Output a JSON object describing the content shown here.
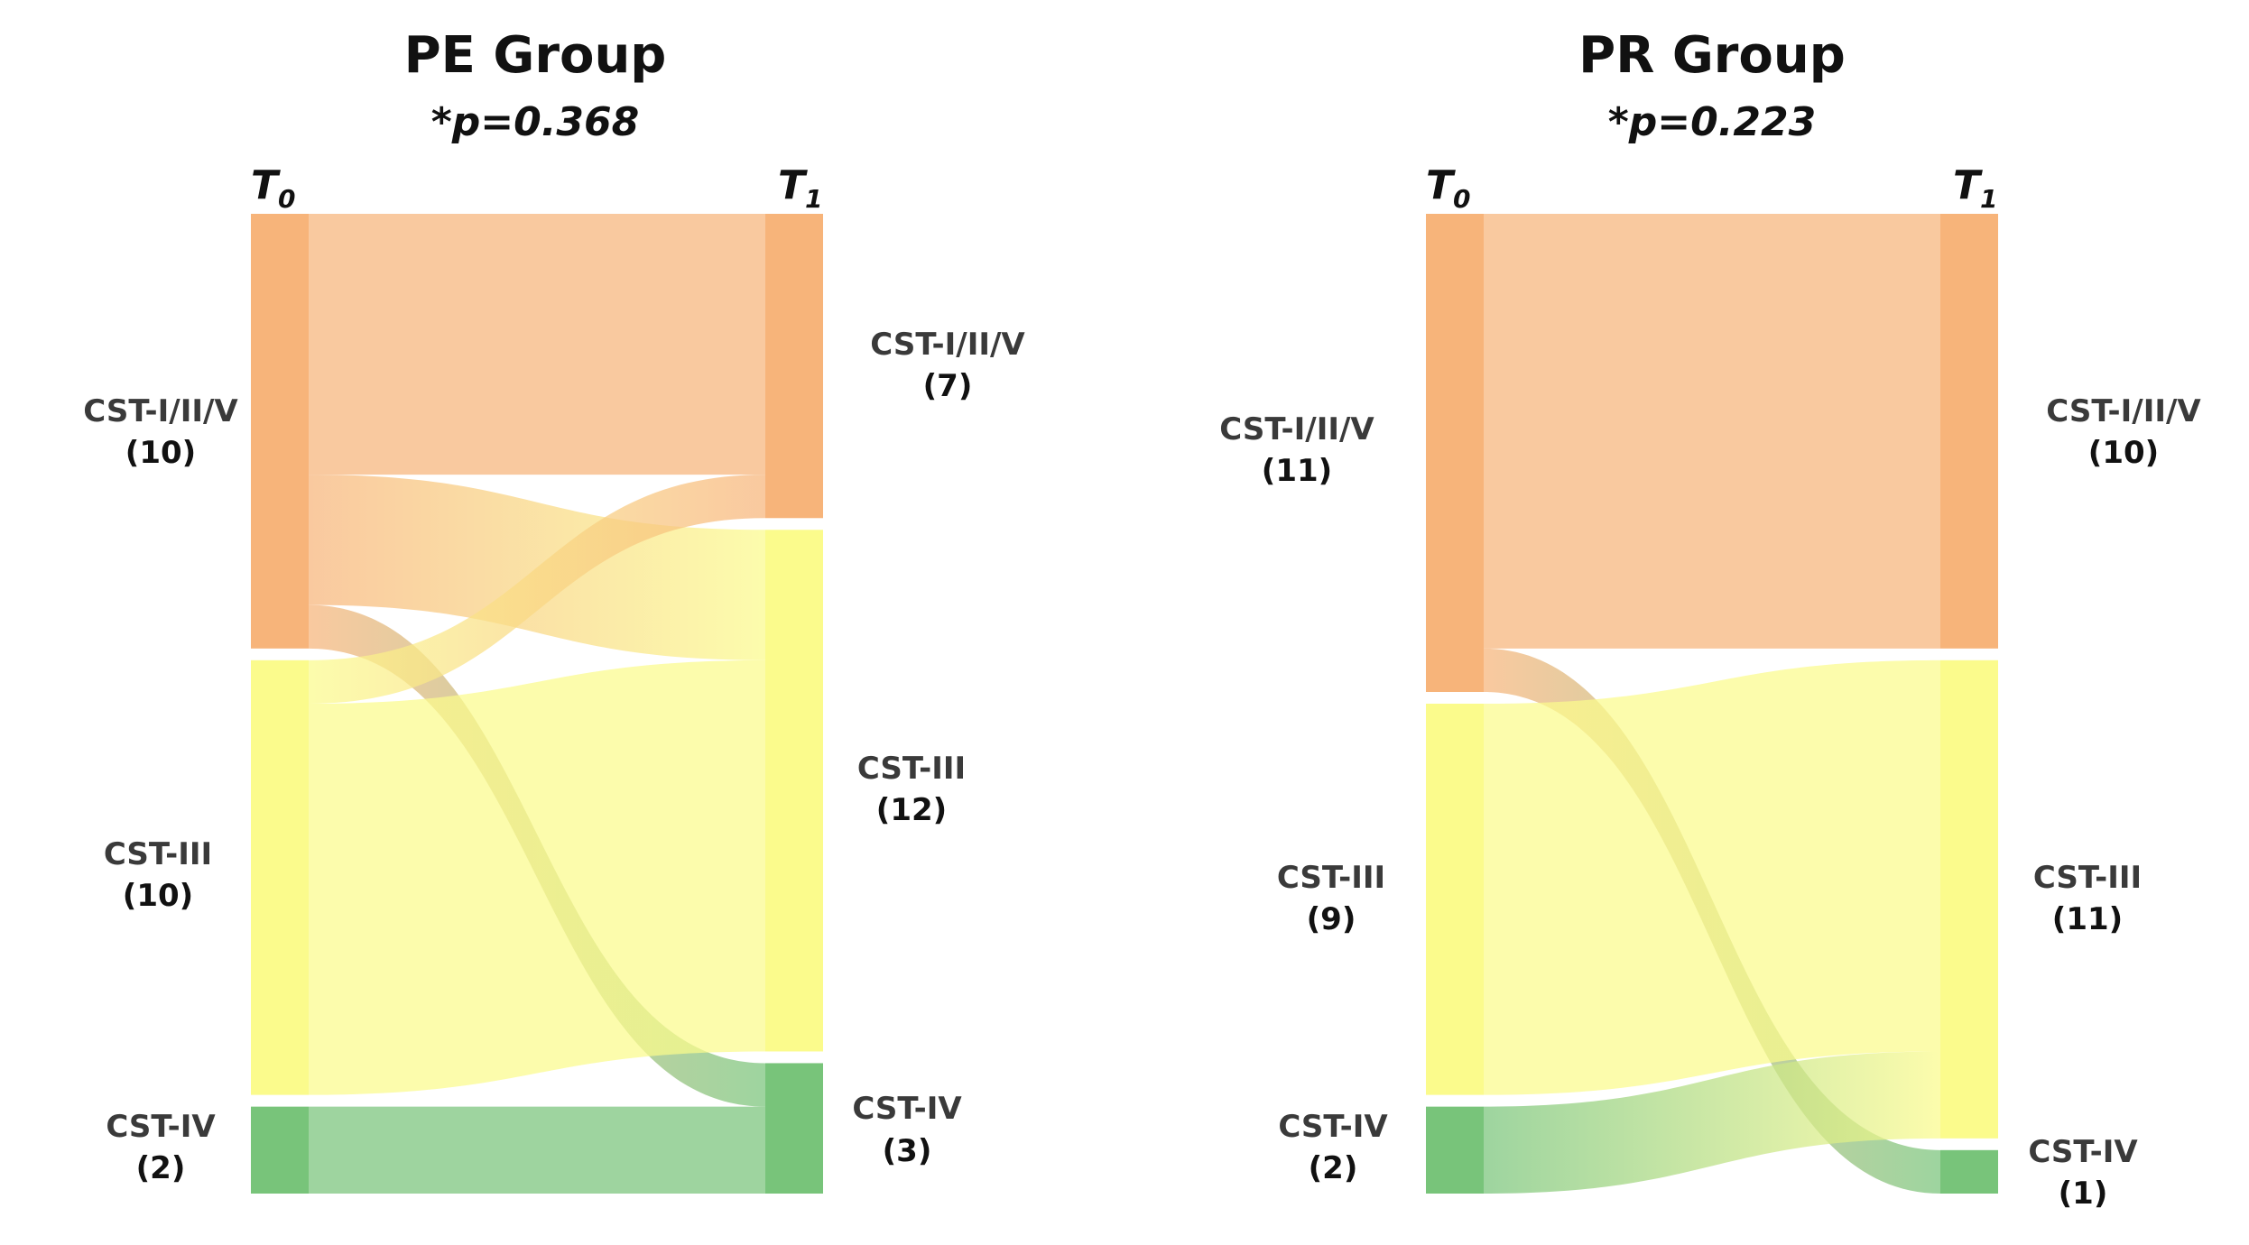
{
  "figure": {
    "panel_count": 2
  },
  "colors": {
    "CST-I/II/V": "#f7b47a",
    "CST-III": "#fbfb8c",
    "CST-IV": "#78c47a"
  },
  "chart_data": [
    {
      "type": "sankey",
      "title": "PE Group",
      "pvalue": "*p=0.368",
      "time_labels": {
        "left_main": "T",
        "left_sub": "0",
        "right_main": "T",
        "right_sub": "1"
      },
      "left_nodes": [
        {
          "name": "CST-I/II/V",
          "count": 10,
          "count_label": "(10)"
        },
        {
          "name": "CST-III",
          "count": 10,
          "count_label": "(10)"
        },
        {
          "name": "CST-IV",
          "count": 2,
          "count_label": "(2)"
        }
      ],
      "right_nodes": [
        {
          "name": "CST-I/II/V",
          "count": 7,
          "count_label": "(7)"
        },
        {
          "name": "CST-III",
          "count": 12,
          "count_label": "(12)"
        },
        {
          "name": "CST-IV",
          "count": 3,
          "count_label": "(3)"
        }
      ],
      "links": [
        {
          "source": "CST-I/II/V",
          "target": "CST-I/II/V",
          "value": 6
        },
        {
          "source": "CST-I/II/V",
          "target": "CST-III",
          "value": 3
        },
        {
          "source": "CST-I/II/V",
          "target": "CST-IV",
          "value": 1
        },
        {
          "source": "CST-III",
          "target": "CST-I/II/V",
          "value": 1
        },
        {
          "source": "CST-III",
          "target": "CST-III",
          "value": 9
        },
        {
          "source": "CST-IV",
          "target": "CST-IV",
          "value": 2
        }
      ]
    },
    {
      "type": "sankey",
      "title": "PR Group",
      "pvalue": "*p=0.223",
      "time_labels": {
        "left_main": "T",
        "left_sub": "0",
        "right_main": "T",
        "right_sub": "1"
      },
      "left_nodes": [
        {
          "name": "CST-I/II/V",
          "count": 11,
          "count_label": "(11)"
        },
        {
          "name": "CST-III",
          "count": 9,
          "count_label": "(9)"
        },
        {
          "name": "CST-IV",
          "count": 2,
          "count_label": "(2)"
        }
      ],
      "right_nodes": [
        {
          "name": "CST-I/II/V",
          "count": 10,
          "count_label": "(10)"
        },
        {
          "name": "CST-III",
          "count": 11,
          "count_label": "(11)"
        },
        {
          "name": "CST-IV",
          "count": 1,
          "count_label": "(1)"
        }
      ],
      "links": [
        {
          "source": "CST-I/II/V",
          "target": "CST-I/II/V",
          "value": 10
        },
        {
          "source": "CST-I/II/V",
          "target": "CST-IV",
          "value": 1
        },
        {
          "source": "CST-III",
          "target": "CST-III",
          "value": 9
        },
        {
          "source": "CST-IV",
          "target": "CST-III",
          "value": 2
        }
      ]
    }
  ]
}
